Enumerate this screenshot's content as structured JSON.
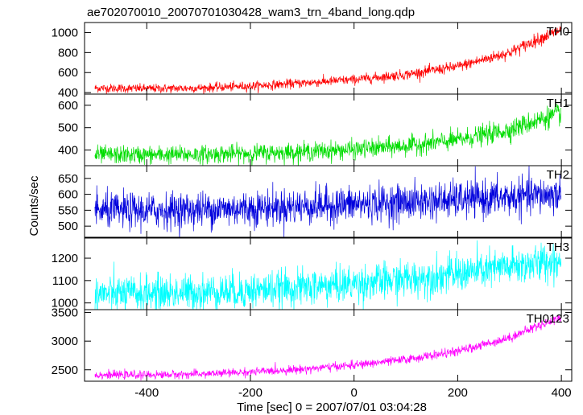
{
  "title": "ae702070010_20070701030428_wam3_trn_4band_long.qdp",
  "xlabel": "Time [sec] 0 = 2007/07/01 03:04:28",
  "ylabel": "Counts/sec",
  "chart_data": {
    "type": "line",
    "x_range": [
      -520,
      420
    ],
    "x_ticks": [
      -400,
      -200,
      0,
      200,
      400
    ],
    "panels": [
      {
        "name": "TH0",
        "color": "#ff0000",
        "ylim": [
          385,
          1100
        ],
        "yticks": [
          400,
          600,
          800,
          1000
        ],
        "trend_x": [
          -500,
          -400,
          -300,
          -200,
          -100,
          0,
          100,
          200,
          300,
          350,
          400
        ],
        "trend_y": [
          445,
          440,
          445,
          465,
          495,
          530,
          580,
          660,
          800,
          920,
          1030
        ],
        "noise": 22
      },
      {
        "name": "TH1",
        "color": "#00dd00",
        "ylim": [
          330,
          650
        ],
        "yticks": [
          400,
          500,
          600
        ],
        "trend_x": [
          -500,
          -400,
          -300,
          -200,
          -100,
          0,
          100,
          200,
          300,
          350,
          400
        ],
        "trend_y": [
          378,
          378,
          380,
          385,
          392,
          402,
          418,
          445,
          490,
          530,
          565
        ],
        "noise": 20
      },
      {
        "name": "TH2",
        "color": "#0000dd",
        "ylim": [
          465,
          690
        ],
        "yticks": [
          500,
          550,
          600,
          650
        ],
        "trend_x": [
          -500,
          -400,
          -300,
          -200,
          -100,
          0,
          100,
          200,
          300,
          400
        ],
        "trend_y": [
          548,
          548,
          552,
          556,
          562,
          568,
          575,
          582,
          590,
          600
        ],
        "noise": 28
      },
      {
        "name": "TH3",
        "color": "#00ffff",
        "ylim": [
          970,
          1290
        ],
        "yticks": [
          1000,
          1100,
          1200
        ],
        "trend_x": [
          -500,
          -400,
          -300,
          -200,
          -100,
          0,
          100,
          200,
          300,
          400
        ],
        "trend_y": [
          1040,
          1042,
          1048,
          1055,
          1068,
          1085,
          1105,
          1130,
          1160,
          1190
        ],
        "noise": 40
      },
      {
        "name": "TH0123",
        "color": "#ff00ff",
        "ylim": [
          2300,
          3550
        ],
        "yticks": [
          2500,
          3000,
          3500
        ],
        "trend_x": [
          -500,
          -400,
          -300,
          -200,
          -100,
          0,
          100,
          200,
          300,
          350,
          400
        ],
        "trend_y": [
          2410,
          2410,
          2425,
          2460,
          2510,
          2580,
          2680,
          2820,
          3060,
          3250,
          3420
        ],
        "noise": 35
      }
    ]
  }
}
